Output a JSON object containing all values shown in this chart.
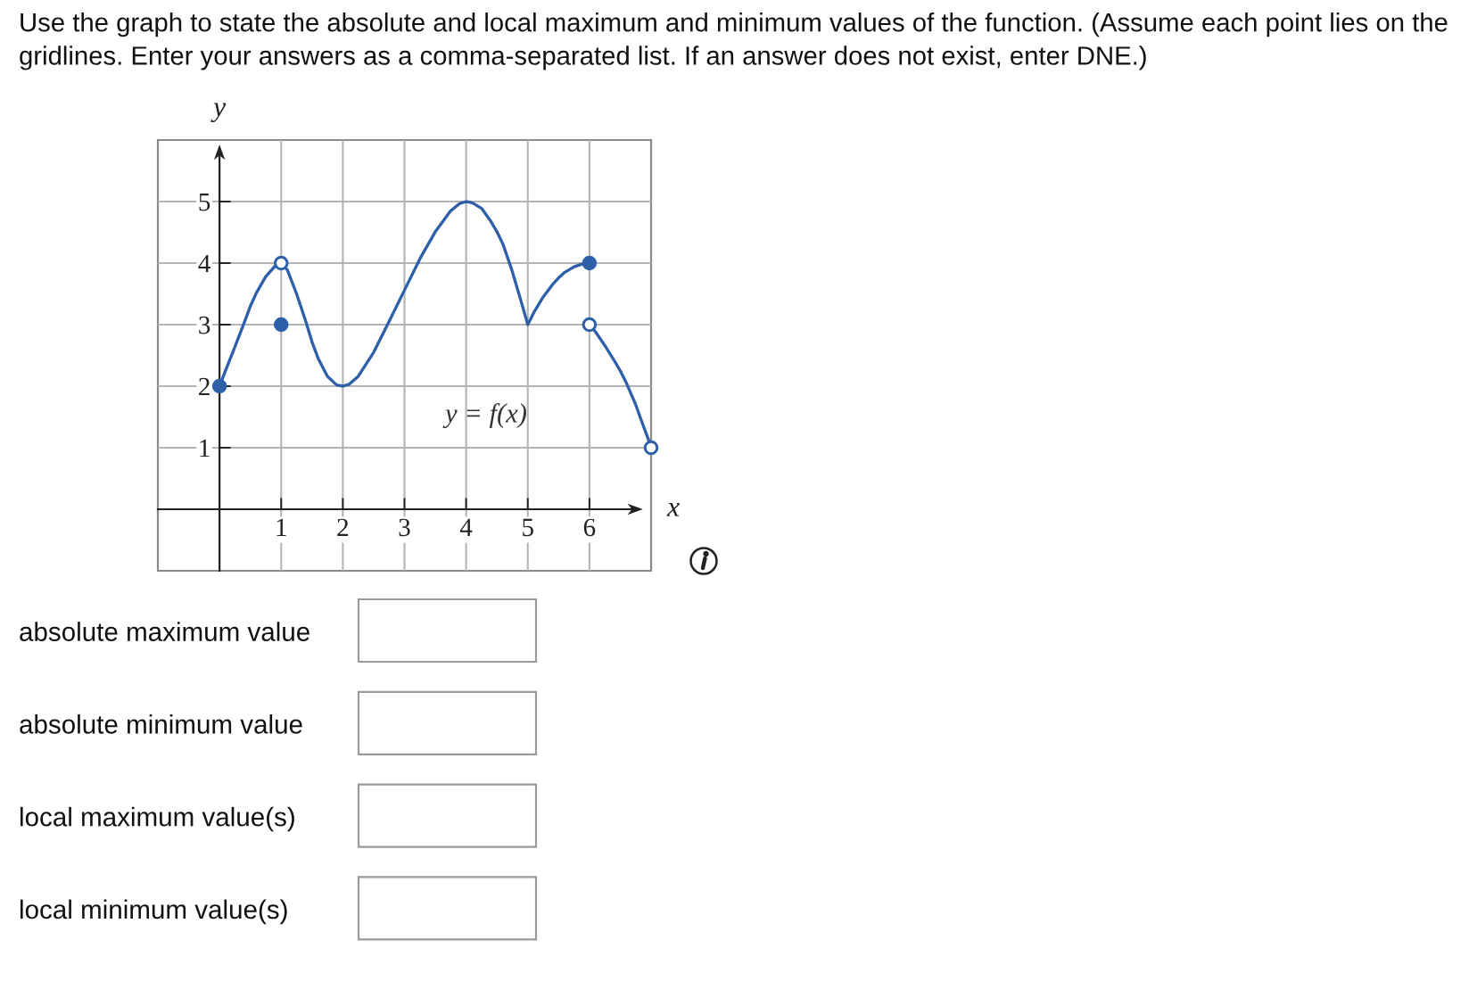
{
  "chart_data": {
    "type": "line",
    "title": "Use the graph to state the absolute and local maximum and minimum values of the function. (Assume each point lies on the gridlines. Enter your answers as a comma-separated list. If an answer does not exist, enter DNE.)",
    "xlabel": "x",
    "ylabel": "y",
    "xlim": [
      -1,
      7
    ],
    "ylim": [
      -1,
      6
    ],
    "xticks": [
      1,
      2,
      3,
      4,
      5,
      6
    ],
    "yticks": [
      1,
      2,
      3,
      4,
      5
    ],
    "grid": true,
    "series": [
      {
        "color": "#2e5fa9",
        "x": [
          0,
          0.1,
          0.25,
          0.4,
          0.5,
          0.6,
          0.75,
          0.9,
          1,
          1.1,
          1.25,
          1.4,
          1.5,
          1.6,
          1.75,
          1.9,
          2,
          2.1,
          2.25,
          2.5,
          2.75,
          3,
          3.25,
          3.5,
          3.75,
          3.9,
          4,
          4.1,
          4.25,
          4.4,
          4.5,
          4.6,
          4.75,
          4.9,
          5,
          5.1,
          5.25,
          5.4,
          5.5,
          5.6,
          5.75,
          5.9,
          6
        ],
        "values": [
          2,
          2.26,
          2.64,
          3.03,
          3.3,
          3.52,
          3.78,
          3.95,
          4,
          3.89,
          3.5,
          3.05,
          2.72,
          2.45,
          2.16,
          2.02,
          2,
          2.03,
          2.16,
          2.55,
          3.05,
          3.56,
          4.07,
          4.51,
          4.85,
          4.97,
          5,
          4.98,
          4.89,
          4.68,
          4.51,
          4.3,
          3.86,
          3.35,
          3,
          3.2,
          3.45,
          3.65,
          3.76,
          3.85,
          3.94,
          3.99,
          4
        ]
      },
      {
        "color": "#2e5fa9",
        "x": [
          6,
          6.1,
          6.25,
          6.4,
          6.5,
          6.6,
          6.75,
          6.85,
          6.95,
          7
        ],
        "values": [
          3,
          2.88,
          2.66,
          2.42,
          2.25,
          2.05,
          1.7,
          1.42,
          1.15,
          1
        ]
      },
      {
        "type": "scatter",
        "marker": "circle",
        "color": "#2e5fa9",
        "x": [
          0,
          1,
          6
        ],
        "values": [
          2,
          3,
          4
        ]
      },
      {
        "type": "scatter",
        "marker": "circle",
        "color": "#2e5fa9",
        "colors": [
          "#ffffff",
          "#ffffff",
          "#ffffff"
        ],
        "x": [
          1,
          6,
          7
        ],
        "values": [
          4,
          3,
          1
        ]
      }
    ],
    "annotations": [
      "y = f(x)",
      "absolute maximum value",
      "absolute minimum value",
      "local maximum value(s)",
      "local minimum value(s)"
    ]
  }
}
